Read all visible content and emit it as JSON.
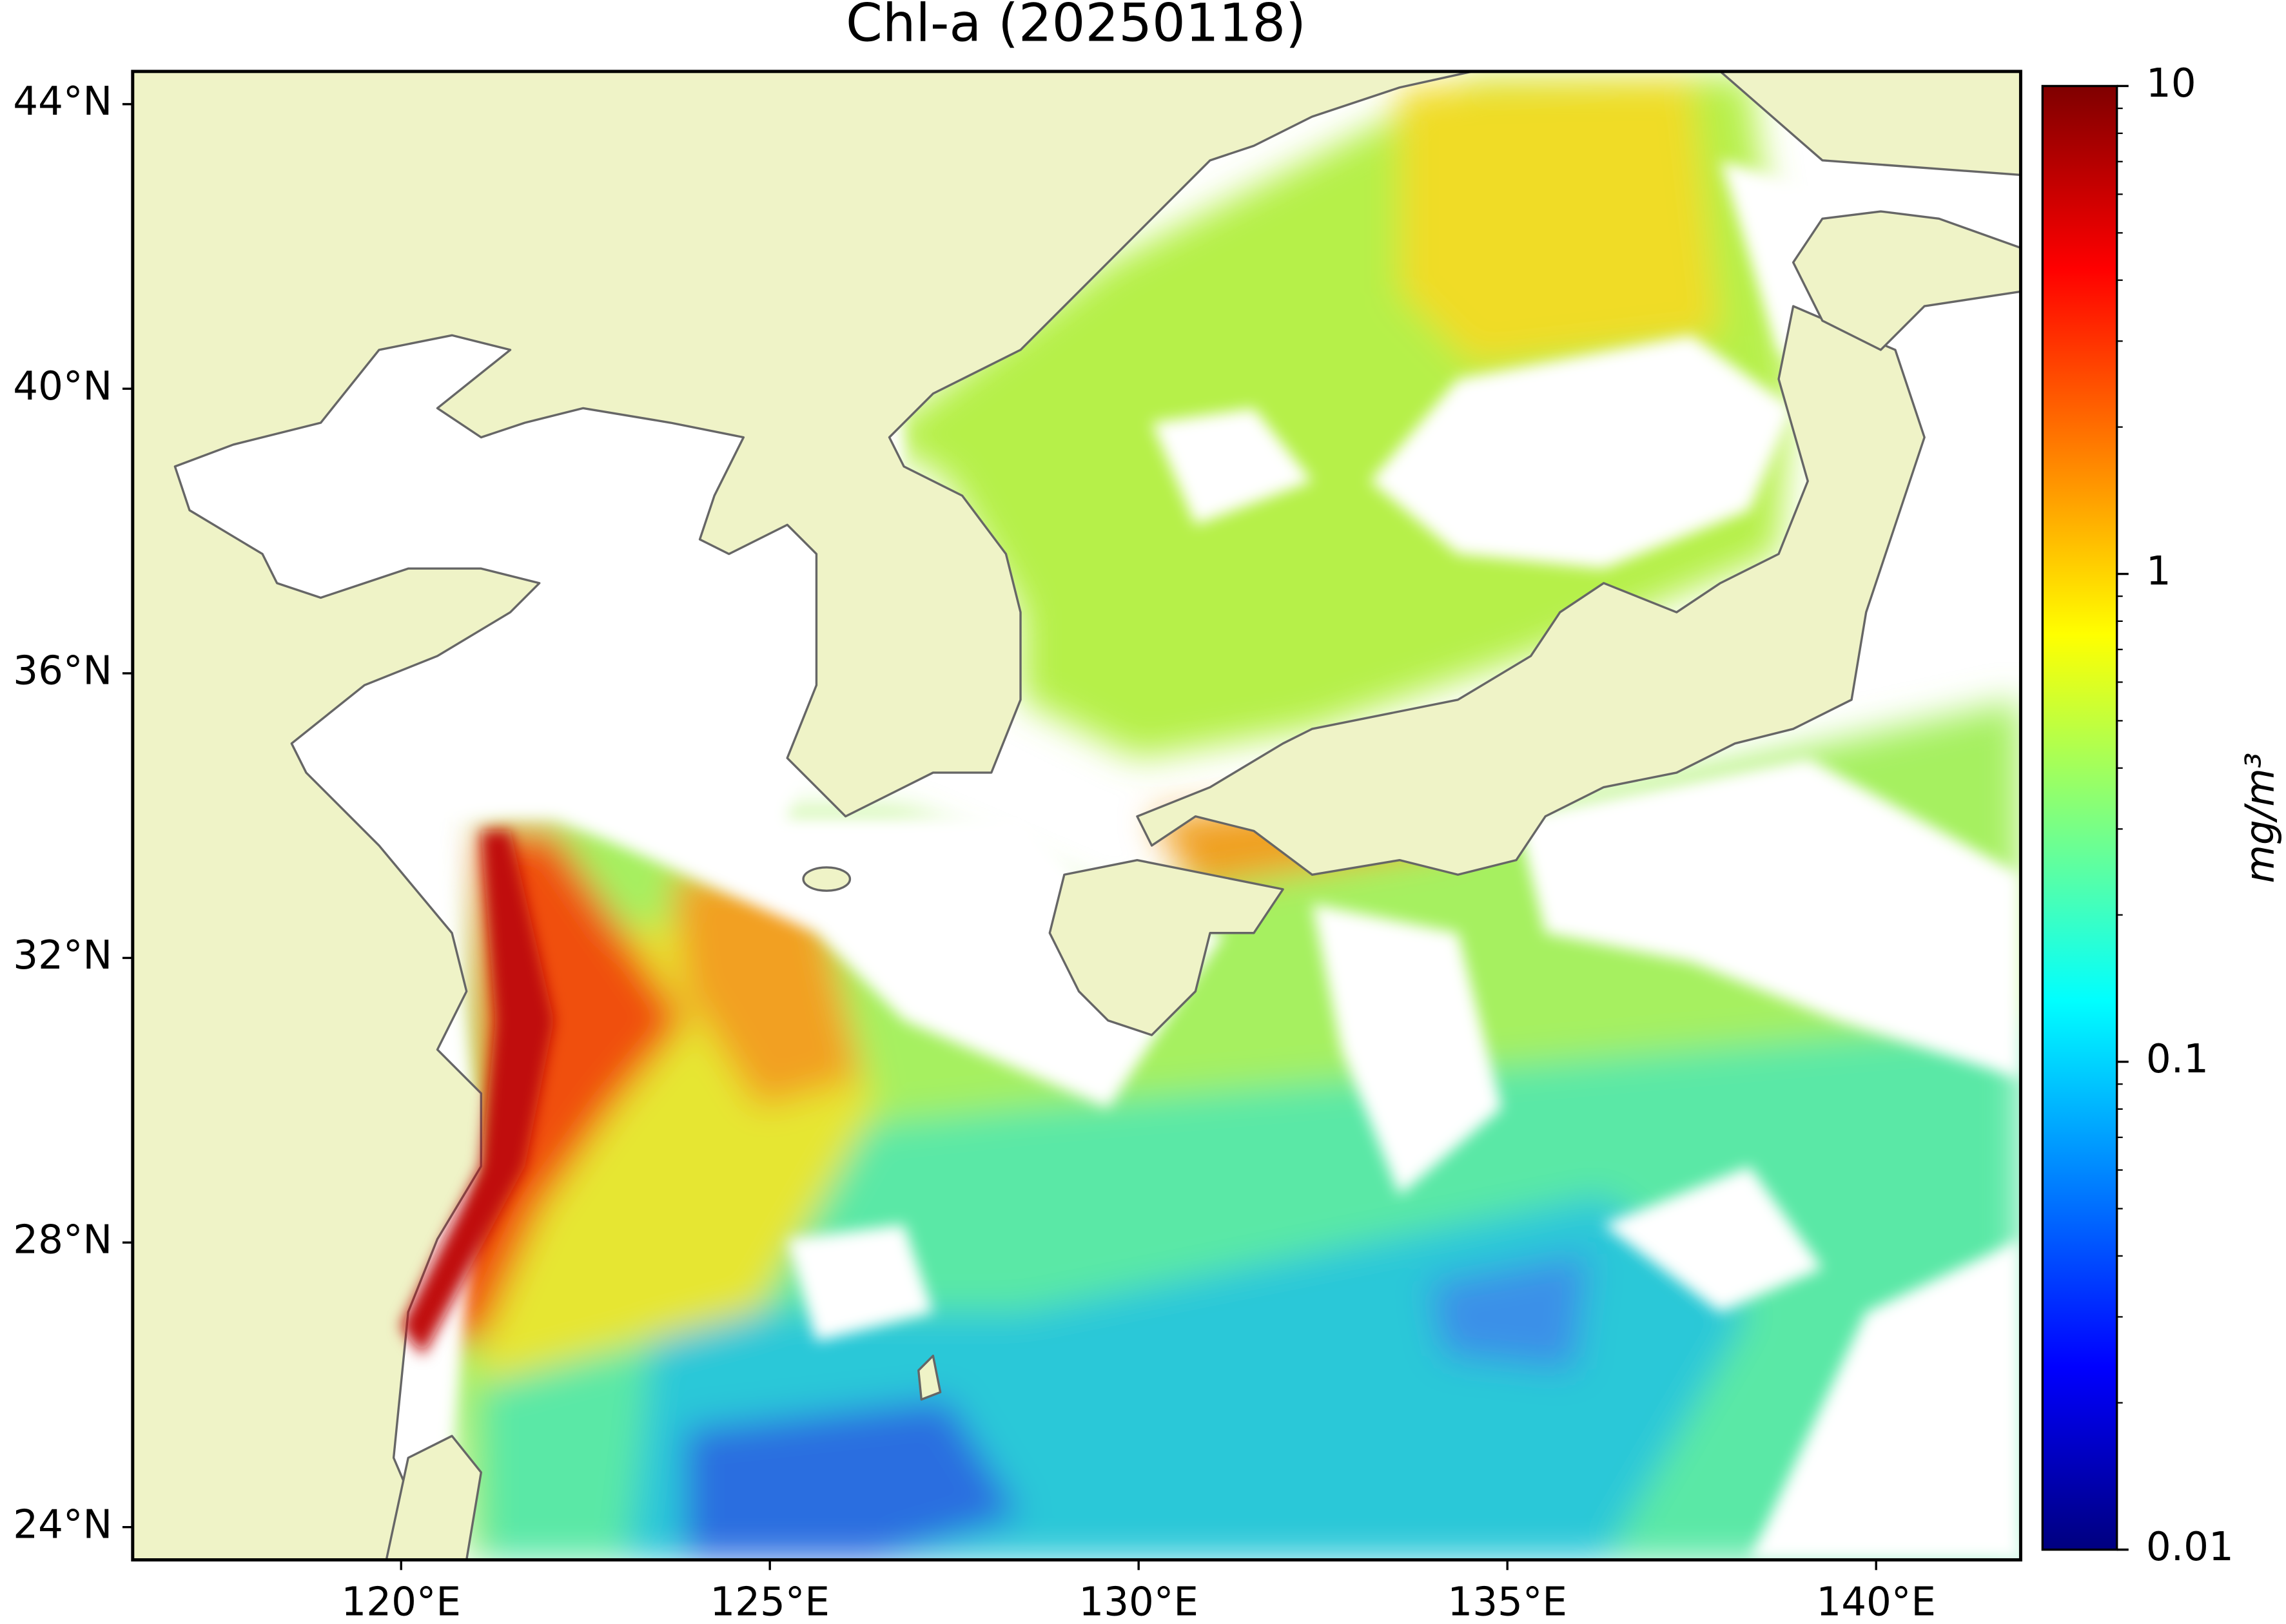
{
  "title": "Chl-a (20250118)",
  "map": {
    "xlim": [
      116.36,
      141.96
    ],
    "ylim": [
      23.54,
      44.46
    ],
    "xticks": [
      {
        "value": 120,
        "label": "120°E"
      },
      {
        "value": 125,
        "label": "125°E"
      },
      {
        "value": 130,
        "label": "130°E"
      },
      {
        "value": 135,
        "label": "135°E"
      },
      {
        "value": 140,
        "label": "140°E"
      }
    ],
    "yticks": [
      {
        "value": 24,
        "label": "24°N"
      },
      {
        "value": 28,
        "label": "28°N"
      },
      {
        "value": 32,
        "label": "32°N"
      },
      {
        "value": 36,
        "label": "36°N"
      },
      {
        "value": 40,
        "label": "40°N"
      },
      {
        "value": 44,
        "label": "44°N"
      }
    ]
  },
  "colorbar": {
    "label": "mg/m³",
    "scale": "log",
    "lim": [
      0.01,
      10
    ],
    "ticks": [
      0.01,
      0.1,
      1,
      10
    ],
    "colors": [
      "#00007f",
      "#0000ff",
      "#007fff",
      "#00ffff",
      "#7fff7f",
      "#ffff00",
      "#ff7f00",
      "#ff0000",
      "#7f0000"
    ]
  }
}
